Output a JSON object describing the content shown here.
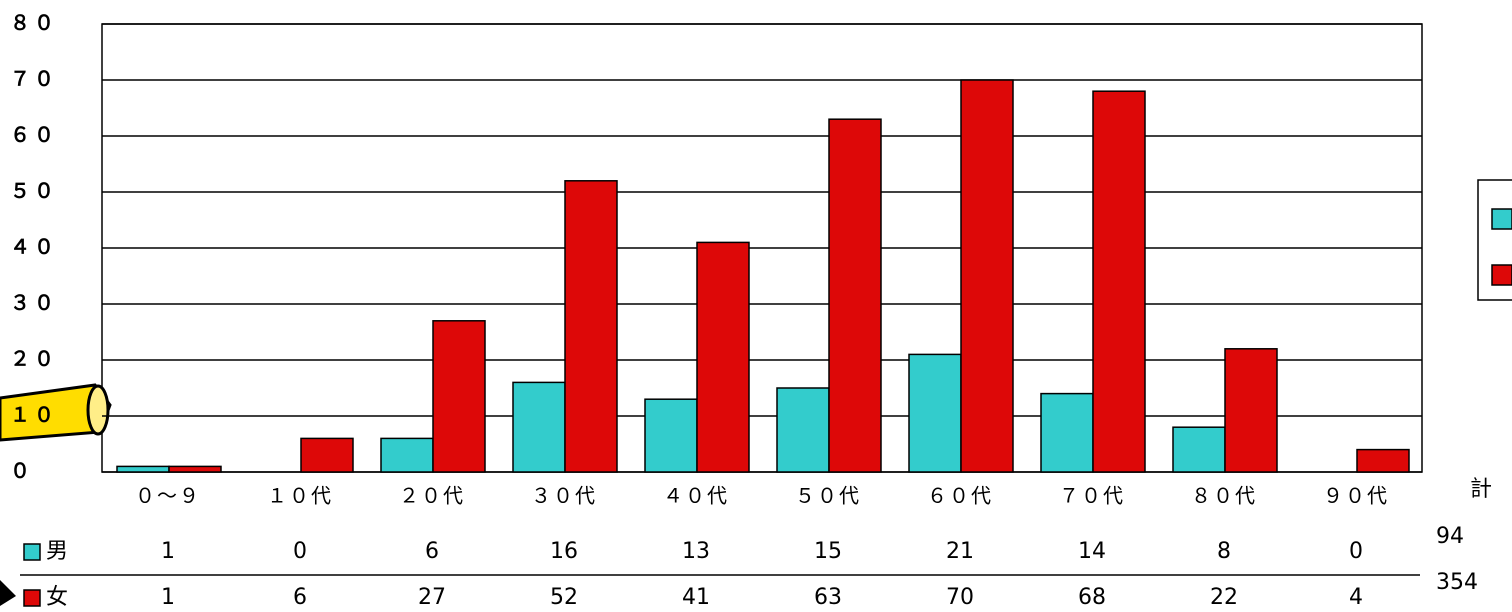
{
  "chart_data": {
    "type": "bar",
    "categories": [
      "０～９",
      "１０代",
      "２０代",
      "３０代",
      "４０代",
      "５０代",
      "６０代",
      "７０代",
      "８０代",
      "９０代"
    ],
    "series": [
      {
        "name": "男",
        "color": "#33cccc",
        "values": [
          1,
          0,
          6,
          16,
          13,
          15,
          21,
          14,
          8,
          0
        ]
      },
      {
        "name": "女",
        "color": "#dd0808",
        "values": [
          1,
          6,
          27,
          52,
          41,
          63,
          70,
          68,
          22,
          4
        ]
      }
    ],
    "ylim": [
      0,
      80
    ],
    "yticks": [
      {
        "value": 0,
        "label": "０"
      },
      {
        "value": 10,
        "label": "１０"
      },
      {
        "value": 20,
        "label": "２０"
      },
      {
        "value": 30,
        "label": "３０"
      },
      {
        "value": 40,
        "label": "４０"
      },
      {
        "value": 50,
        "label": "５０"
      },
      {
        "value": 60,
        "label": "６０"
      },
      {
        "value": 70,
        "label": "７０"
      },
      {
        "value": 80,
        "label": "８０"
      }
    ],
    "grid": true,
    "totals": {
      "label": "計",
      "values": [
        94,
        354
      ]
    }
  }
}
